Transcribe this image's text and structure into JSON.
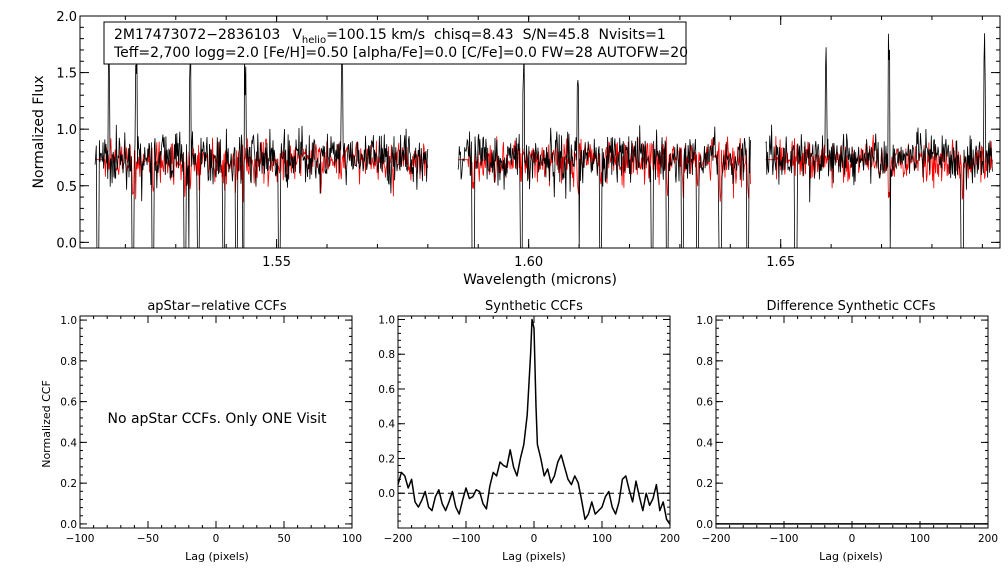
{
  "colors": {
    "observed": "#000000",
    "model": "#ff0000",
    "axis": "#000000",
    "background": "#ffffff"
  },
  "info": {
    "star_id": "2M17473072−2836103",
    "vhelio_symbol": "V",
    "vhelio_subscript": "helio",
    "vhelio_value": "=100.15 km/s",
    "chisq": "chisq=8.43",
    "snr": "S/N=45.8",
    "nvisits": "Nvisits=1",
    "line2": "Teff=2,700 logg=2.0 [Fe/H]=0.50 [alpha/Fe]=0.0 [C/Fe]=0.0 FW=28 AUTOFW=20"
  },
  "chart_data": [
    {
      "id": "spectrum",
      "type": "line",
      "title": "",
      "xlabel": "Wavelength (microns)",
      "ylabel": "Normalized Flux",
      "xlim": [
        1.511,
        1.6935
      ],
      "ylim": [
        -0.05,
        2.0
      ],
      "xticks": [
        1.55,
        1.6,
        1.65
      ],
      "xtick_labels": [
        "1.55",
        "1.60",
        "1.65"
      ],
      "yticks": [
        0.0,
        0.5,
        1.0,
        1.5,
        2.0
      ],
      "ytick_labels": [
        "0.0",
        "0.5",
        "1.0",
        "1.5",
        "2.0"
      ],
      "chip_ranges": [
        [
          1.514,
          1.58
        ],
        [
          1.586,
          1.644
        ],
        [
          1.647,
          1.692
        ]
      ],
      "series": [
        {
          "name": "observed",
          "color": "#000000",
          "mean": 0.75,
          "noise": 0.1
        },
        {
          "name": "model",
          "color": "#ff0000",
          "mean": 0.73,
          "noise": 0.08
        }
      ],
      "deep_lines": [
        1.5145,
        1.5215,
        1.5255,
        1.5318,
        1.5328,
        1.5345,
        1.5395,
        1.542,
        1.5435,
        1.5505,
        1.589,
        1.5985,
        1.6098,
        1.6143,
        1.6245,
        1.6275,
        1.6305,
        1.6335,
        1.638,
        1.6435,
        1.653,
        1.6715,
        1.686
      ],
      "spikes": [
        1.5168,
        1.5222,
        1.5328,
        1.5438,
        1.563,
        1.599,
        1.6098,
        1.659,
        1.6715,
        1.6905
      ]
    },
    {
      "id": "apstar-ccf",
      "type": "line",
      "title": "apStar−relative CCFs",
      "xlabel": "Lag (pixels)",
      "ylabel": "Normalized CCF",
      "xlim": [
        -100,
        100
      ],
      "ylim": [
        -0.02,
        1.02
      ],
      "xticks": [
        -100,
        -50,
        0,
        50,
        100
      ],
      "xtick_labels": [
        "−100",
        "−50",
        "0",
        "50",
        "100"
      ],
      "yticks": [
        0.0,
        0.2,
        0.4,
        0.6,
        0.8,
        1.0
      ],
      "ytick_labels": [
        "0.0",
        "0.2",
        "0.4",
        "0.6",
        "0.8",
        "1.0"
      ],
      "annotation": "No apStar CCFs.  Only ONE Visit",
      "series": []
    },
    {
      "id": "synthetic-ccf",
      "type": "line",
      "title": "Synthetic CCFs",
      "xlabel": "Lag (pixels)",
      "ylabel": "",
      "xlim": [
        -200,
        200
      ],
      "ylim": [
        -0.2,
        1.02
      ],
      "xticks": [
        -200,
        -100,
        0,
        100,
        200
      ],
      "xtick_labels": [
        "−200",
        "−100",
        "0",
        "100",
        "200"
      ],
      "yticks": [
        0.0,
        0.2,
        0.4,
        0.6,
        0.8,
        1.0
      ],
      "ytick_labels": [
        "0.0",
        "0.2",
        "0.4",
        "0.6",
        "0.8",
        "1.0"
      ],
      "zero_line": 0.0,
      "series": [
        {
          "name": "ccf",
          "color": "#000000",
          "x": [
            -200,
            -195,
            -190,
            -185,
            -180,
            -175,
            -170,
            -165,
            -160,
            -155,
            -150,
            -145,
            -140,
            -135,
            -130,
            -125,
            -120,
            -115,
            -110,
            -105,
            -100,
            -95,
            -90,
            -85,
            -80,
            -75,
            -70,
            -65,
            -60,
            -55,
            -50,
            -45,
            -40,
            -35,
            -30,
            -25,
            -20,
            -15,
            -10,
            -5,
            -3,
            0,
            3,
            5,
            10,
            15,
            20,
            25,
            30,
            35,
            40,
            45,
            50,
            55,
            60,
            65,
            70,
            75,
            80,
            85,
            90,
            95,
            100,
            105,
            110,
            115,
            120,
            125,
            130,
            135,
            140,
            145,
            150,
            155,
            160,
            165,
            170,
            175,
            180,
            185,
            190,
            195,
            200
          ],
          "y": [
            0.05,
            0.12,
            0.1,
            0.03,
            0.08,
            -0.05,
            -0.08,
            -0.04,
            0.01,
            -0.08,
            -0.1,
            -0.02,
            0.02,
            -0.06,
            -0.1,
            -0.05,
            0.01,
            -0.08,
            -0.12,
            -0.04,
            0.03,
            -0.03,
            -0.02,
            0.02,
            0.01,
            -0.06,
            -0.09,
            0.04,
            0.12,
            0.1,
            0.18,
            0.16,
            0.15,
            0.25,
            0.15,
            0.1,
            0.2,
            0.28,
            0.45,
            0.8,
            1.0,
            0.95,
            0.5,
            0.28,
            0.2,
            0.1,
            0.14,
            0.06,
            0.1,
            0.18,
            0.22,
            0.15,
            0.08,
            0.05,
            0.1,
            0.06,
            -0.04,
            -0.15,
            -0.12,
            -0.05,
            -0.12,
            -0.1,
            -0.08,
            -0.02,
            0.01,
            -0.08,
            -0.12,
            -0.05,
            0.08,
            0.1,
            0.02,
            -0.05,
            0.07,
            -0.02,
            -0.1,
            0.0,
            -0.07,
            -0.03,
            0.05,
            -0.1,
            -0.05,
            -0.15,
            -0.18
          ]
        }
      ]
    },
    {
      "id": "difference-ccf",
      "type": "line",
      "title": "Difference Synthetic CCFs",
      "xlabel": "Lag (pixels)",
      "ylabel": "",
      "xlim": [
        -200,
        200
      ],
      "ylim": [
        -0.02,
        1.02
      ],
      "xticks": [
        -200,
        -100,
        0,
        100,
        200
      ],
      "xtick_labels": [
        "−200",
        "−100",
        "0",
        "100",
        "200"
      ],
      "yticks": [
        0.0,
        0.2,
        0.4,
        0.6,
        0.8,
        1.0
      ],
      "ytick_labels": [
        "0.0",
        "0.2",
        "0.4",
        "0.6",
        "0.8",
        "1.0"
      ],
      "series": [
        {
          "name": "difference",
          "color": "#000000",
          "x": [
            -200,
            200
          ],
          "y": [
            0.0,
            0.0
          ]
        }
      ]
    }
  ]
}
